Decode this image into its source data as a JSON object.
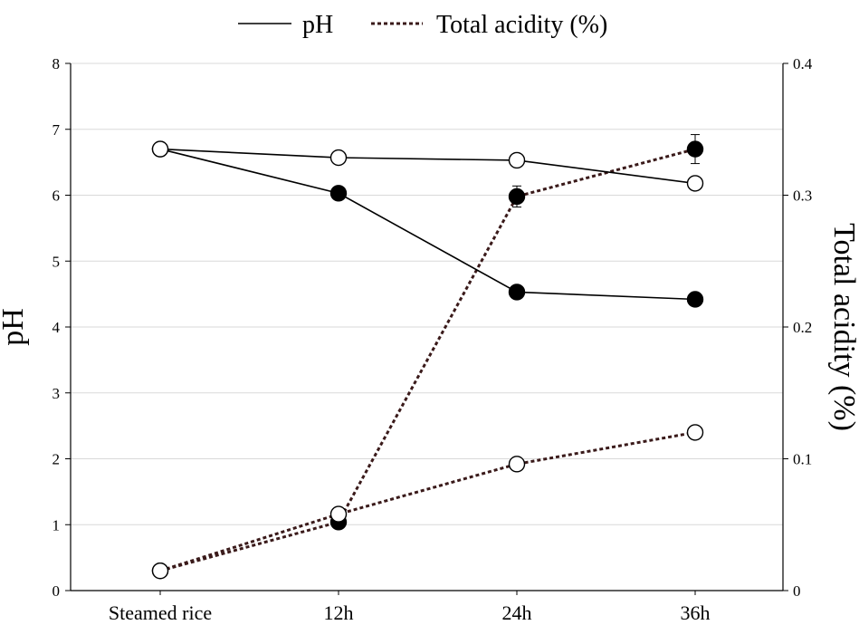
{
  "chart_data": {
    "type": "line",
    "categories": [
      "Steamed rice",
      "12h",
      "24h",
      "36h"
    ],
    "ylabel": "pH",
    "y2label": "Total acidity (%)",
    "ylim": [
      0,
      8
    ],
    "y2lim": [
      0,
      0.4
    ],
    "y_ticks": [
      "0",
      "1",
      "2",
      "3",
      "4",
      "5",
      "6",
      "7",
      "8"
    ],
    "y2_ticks": [
      "0",
      "0.1",
      "0.2",
      "0.3",
      "0.4"
    ],
    "grid": true,
    "legend": {
      "placement": "top-center",
      "items": [
        {
          "label": "pH",
          "style": "solid"
        },
        {
          "label": "Total acidity (%)",
          "style": "dotted"
        }
      ]
    },
    "series": [
      {
        "axis": "left",
        "metric": "pH",
        "marker": "filled",
        "line": "solid",
        "values": [
          6.7,
          6.03,
          4.53,
          4.42
        ]
      },
      {
        "axis": "left",
        "metric": "pH",
        "marker": "open",
        "line": "solid",
        "values": [
          6.7,
          6.57,
          6.53,
          6.18
        ]
      },
      {
        "axis": "right",
        "metric": "Total acidity (%)",
        "marker": "filled",
        "line": "dotted",
        "values": [
          0.015,
          0.052,
          0.299,
          0.335
        ],
        "error": [
          0,
          0,
          0.008,
          0.011
        ]
      },
      {
        "axis": "right",
        "metric": "Total acidity (%)",
        "marker": "open",
        "line": "dotted",
        "values": [
          0.015,
          0.058,
          0.096,
          0.12
        ]
      }
    ],
    "colors": {
      "solid_line": "#000000",
      "dotted_line": "#3a1a1a",
      "grid": "#d9d9d9"
    }
  }
}
